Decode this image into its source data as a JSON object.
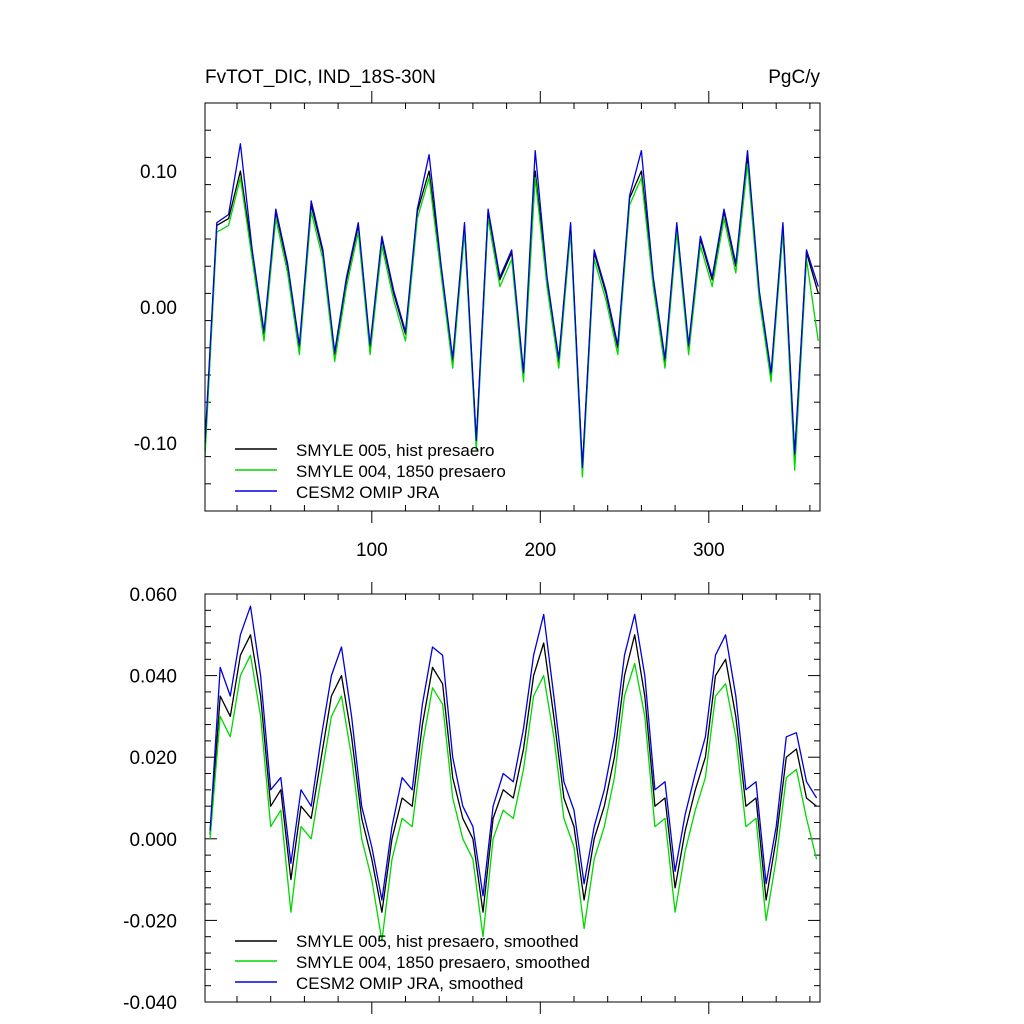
{
  "chart_data": [
    {
      "type": "line",
      "title_left": "FvTOT_DIC, IND_18S-30N",
      "title_right": "PgC/y",
      "xlabel": "",
      "ylabel": "",
      "xlim": [
        1,
        366
      ],
      "ylim": [
        -0.15,
        0.15
      ],
      "x_ticks": [
        100,
        200,
        300
      ],
      "x_tick_labels": [
        "100",
        "200",
        "300"
      ],
      "y_ticks": [
        -0.1,
        0.0,
        0.1
      ],
      "y_tick_labels": [
        "-0.10",
        "0.00",
        "0.10"
      ],
      "grid": false,
      "legend_position": "bottom-left",
      "x": [
        1,
        8,
        15,
        22,
        29,
        36,
        43,
        50,
        57,
        64,
        71,
        78,
        85,
        92,
        99,
        106,
        113,
        120,
        127,
        134,
        141,
        148,
        155,
        162,
        169,
        176,
        183,
        190,
        197,
        204,
        211,
        218,
        225,
        232,
        239,
        246,
        253,
        260,
        267,
        274,
        281,
        288,
        295,
        302,
        309,
        316,
        323,
        330,
        337,
        344,
        351,
        358,
        365
      ],
      "series": [
        {
          "name": "SMYLE 005, hist presaero",
          "color": "#000000",
          "values": [
            -0.105,
            0.06,
            0.065,
            0.1,
            0.04,
            -0.02,
            0.07,
            0.03,
            -0.03,
            0.075,
            0.04,
            -0.035,
            0.02,
            0.06,
            -0.03,
            0.05,
            0.01,
            -0.02,
            0.07,
            0.1,
            0.03,
            -0.04,
            0.06,
            -0.1,
            0.07,
            0.02,
            0.04,
            -0.05,
            0.1,
            0.02,
            -0.04,
            0.06,
            -0.12,
            0.04,
            0.01,
            -0.03,
            0.08,
            0.1,
            0.02,
            -0.04,
            0.06,
            -0.03,
            0.05,
            0.02,
            0.07,
            0.03,
            0.11,
            0.01,
            -0.05,
            0.06,
            -0.11,
            0.04,
            0.01
          ]
        },
        {
          "name": "SMYLE 004, 1850 presaero",
          "color": "#00d800",
          "values": [
            -0.11,
            0.055,
            0.06,
            0.095,
            0.035,
            -0.025,
            0.065,
            0.025,
            -0.035,
            0.07,
            0.035,
            -0.04,
            0.015,
            0.055,
            -0.035,
            0.045,
            0.005,
            -0.025,
            0.065,
            0.095,
            0.025,
            -0.045,
            0.055,
            -0.105,
            0.065,
            0.015,
            0.035,
            -0.055,
            0.095,
            0.015,
            -0.045,
            0.055,
            -0.125,
            0.035,
            0.005,
            -0.035,
            0.075,
            0.095,
            0.015,
            -0.045,
            0.055,
            -0.035,
            0.045,
            0.015,
            0.065,
            0.025,
            0.105,
            0.005,
            -0.055,
            0.055,
            -0.12,
            0.035,
            -0.025
          ]
        },
        {
          "name": "CESM2 OMIP JRA",
          "color": "#0000dd",
          "values": [
            -0.1,
            0.062,
            0.068,
            0.12,
            0.042,
            -0.018,
            0.072,
            0.032,
            -0.028,
            0.078,
            0.042,
            -0.033,
            0.022,
            0.062,
            -0.028,
            0.052,
            0.012,
            -0.018,
            0.072,
            0.112,
            0.032,
            -0.038,
            0.062,
            -0.098,
            0.072,
            0.022,
            0.042,
            -0.048,
            0.115,
            0.022,
            -0.038,
            0.062,
            -0.118,
            0.042,
            0.012,
            -0.028,
            0.082,
            0.115,
            0.022,
            -0.038,
            0.062,
            -0.028,
            0.052,
            0.022,
            0.072,
            0.032,
            0.115,
            0.012,
            -0.048,
            0.062,
            -0.108,
            0.042,
            0.015
          ]
        }
      ]
    },
    {
      "type": "line",
      "xlabel": "",
      "ylabel": "",
      "xlim": [
        1,
        366
      ],
      "ylim": [
        -0.04,
        0.06
      ],
      "x_ticks": [
        100,
        200,
        300
      ],
      "y_ticks": [
        -0.04,
        -0.02,
        0.0,
        0.02,
        0.04,
        0.06
      ],
      "y_tick_labels": [
        "-0.040",
        "-0.020",
        "0.000",
        "0.020",
        "0.040",
        "0.060"
      ],
      "grid": false,
      "legend_position": "bottom-left",
      "x": [
        4,
        10,
        16,
        22,
        28,
        34,
        40,
        46,
        52,
        58,
        64,
        70,
        76,
        82,
        88,
        94,
        100,
        106,
        112,
        118,
        124,
        130,
        136,
        142,
        148,
        154,
        160,
        166,
        172,
        178,
        184,
        190,
        196,
        202,
        208,
        214,
        220,
        226,
        232,
        238,
        244,
        250,
        256,
        262,
        268,
        274,
        280,
        286,
        292,
        298,
        304,
        310,
        316,
        322,
        328,
        334,
        340,
        346,
        352,
        358,
        364
      ],
      "series": [
        {
          "name": "SMYLE 005, hist presaero, smoothed",
          "color": "#000000",
          "values": [
            0.001,
            0.035,
            0.03,
            0.045,
            0.05,
            0.035,
            0.008,
            0.012,
            -0.01,
            0.008,
            0.005,
            0.02,
            0.035,
            0.04,
            0.025,
            0.005,
            -0.005,
            -0.018,
            0.0,
            0.01,
            0.008,
            0.028,
            0.042,
            0.038,
            0.015,
            0.005,
            0.0,
            -0.018,
            0.005,
            0.012,
            0.01,
            0.022,
            0.04,
            0.048,
            0.03,
            0.01,
            0.003,
            -0.015,
            0.0,
            0.008,
            0.02,
            0.04,
            0.05,
            0.035,
            0.008,
            0.01,
            -0.012,
            0.002,
            0.012,
            0.02,
            0.04,
            0.044,
            0.03,
            0.008,
            0.01,
            -0.015,
            0.0,
            0.02,
            0.022,
            0.01,
            0.008
          ]
        },
        {
          "name": "SMYLE 004, 1850 presaero, smoothed",
          "color": "#00d800",
          "values": [
            0.0,
            0.03,
            0.025,
            0.04,
            0.045,
            0.03,
            0.003,
            0.007,
            -0.018,
            0.003,
            0.0,
            0.015,
            0.03,
            0.035,
            0.02,
            0.0,
            -0.01,
            -0.025,
            -0.005,
            0.005,
            0.003,
            0.023,
            0.037,
            0.033,
            0.01,
            0.0,
            -0.005,
            -0.024,
            0.0,
            0.007,
            0.005,
            0.017,
            0.035,
            0.04,
            0.025,
            0.005,
            -0.002,
            -0.022,
            -0.005,
            0.003,
            0.015,
            0.035,
            0.043,
            0.03,
            0.003,
            0.005,
            -0.018,
            -0.003,
            0.007,
            0.015,
            0.035,
            0.038,
            0.025,
            0.003,
            0.005,
            -0.02,
            -0.005,
            0.015,
            0.017,
            0.005,
            -0.005
          ]
        },
        {
          "name": "CESM2 OMIP JRA, smoothed",
          "color": "#0000dd",
          "values": [
            0.002,
            0.042,
            0.035,
            0.05,
            0.057,
            0.04,
            0.012,
            0.015,
            -0.006,
            0.012,
            0.008,
            0.025,
            0.04,
            0.047,
            0.03,
            0.008,
            -0.002,
            -0.015,
            0.003,
            0.015,
            0.012,
            0.033,
            0.047,
            0.045,
            0.02,
            0.008,
            0.003,
            -0.014,
            0.008,
            0.016,
            0.014,
            0.027,
            0.045,
            0.055,
            0.035,
            0.014,
            0.007,
            -0.011,
            0.003,
            0.012,
            0.025,
            0.045,
            0.055,
            0.04,
            0.012,
            0.014,
            -0.008,
            0.006,
            0.016,
            0.025,
            0.045,
            0.05,
            0.035,
            0.012,
            0.014,
            -0.011,
            0.003,
            0.025,
            0.026,
            0.014,
            0.01
          ]
        }
      ]
    }
  ]
}
